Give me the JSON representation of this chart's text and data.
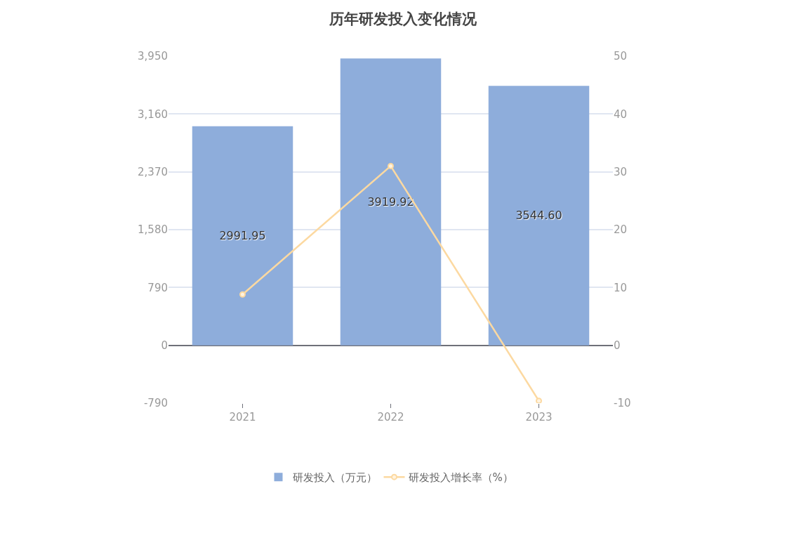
{
  "chart_data": {
    "type": "bar",
    "title": "历年研发投入变化情况",
    "categories": [
      "2021",
      "2022",
      "2023"
    ],
    "series": [
      {
        "name": "研发投入（万元）",
        "color": "#8eaddb",
        "values": [
          2991.95,
          3919.92,
          3544.6
        ],
        "value_labels": [
          "2991.95",
          "3919.92",
          "3544.60"
        ]
      },
      {
        "name": "研发投入增长率（%）",
        "type": "line",
        "axis": "y2",
        "color": "#fcd9a1",
        "values": [
          8.8,
          31.0,
          -9.6
        ],
        "marker": "circle"
      }
    ],
    "ylim": [
      -790,
      3950
    ],
    "yticks": [
      {
        "value": -790,
        "label": "-790"
      },
      0,
      {
        "value": 790,
        "label": "790"
      },
      {
        "value": 1580,
        "label": "1,580"
      },
      {
        "value": 2370,
        "label": "2,370"
      },
      {
        "value": 3160,
        "label": "3,160"
      },
      {
        "value": 3950,
        "label": "3,950"
      }
    ],
    "y2lim": [
      -10,
      50
    ],
    "y2ticks": [
      -10,
      0,
      10,
      20,
      30,
      40,
      50
    ],
    "grid": "y",
    "legend": "bottom"
  }
}
